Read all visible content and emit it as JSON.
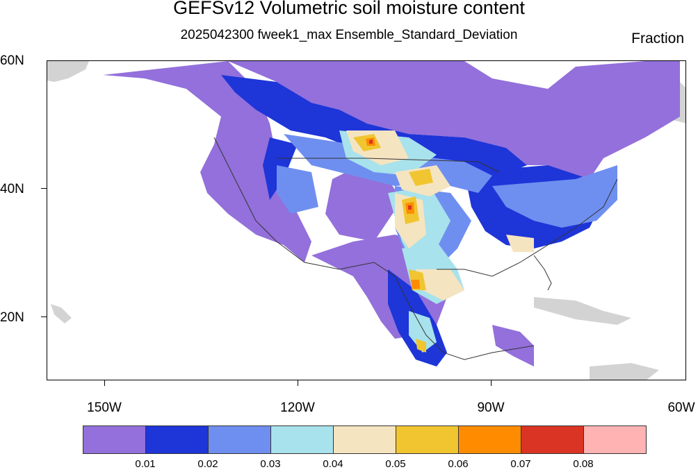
{
  "title": "GEFSv12 Volumetric soil moisture content",
  "subtitle": "2025042300 fweek1_max Ensemble_Standard_Deviation",
  "units": "Fraction",
  "map": {
    "projection": "cylindrical-equidistant",
    "lon_range": [
      -159,
      -60
    ],
    "lat_range": [
      10,
      60
    ],
    "lat_labels": [
      "60N",
      "40N",
      "20N"
    ],
    "lon_labels": [
      "150W",
      "120W",
      "90W",
      "60W"
    ],
    "region": "North America, Central America and Caribbean",
    "land_no_data_color": "#d3d3d3"
  },
  "colorbar": {
    "colors": [
      "#9370db",
      "#1e35d8",
      "#6f8ff0",
      "#a8e2ec",
      "#f5e4c0",
      "#f0c530",
      "#ff8c00",
      "#d93424",
      "#ffb3b3"
    ],
    "labels": [
      "0.01",
      "0.02",
      "0.03",
      "0.04",
      "0.05",
      "0.06",
      "0.07",
      "0.08"
    ]
  }
}
